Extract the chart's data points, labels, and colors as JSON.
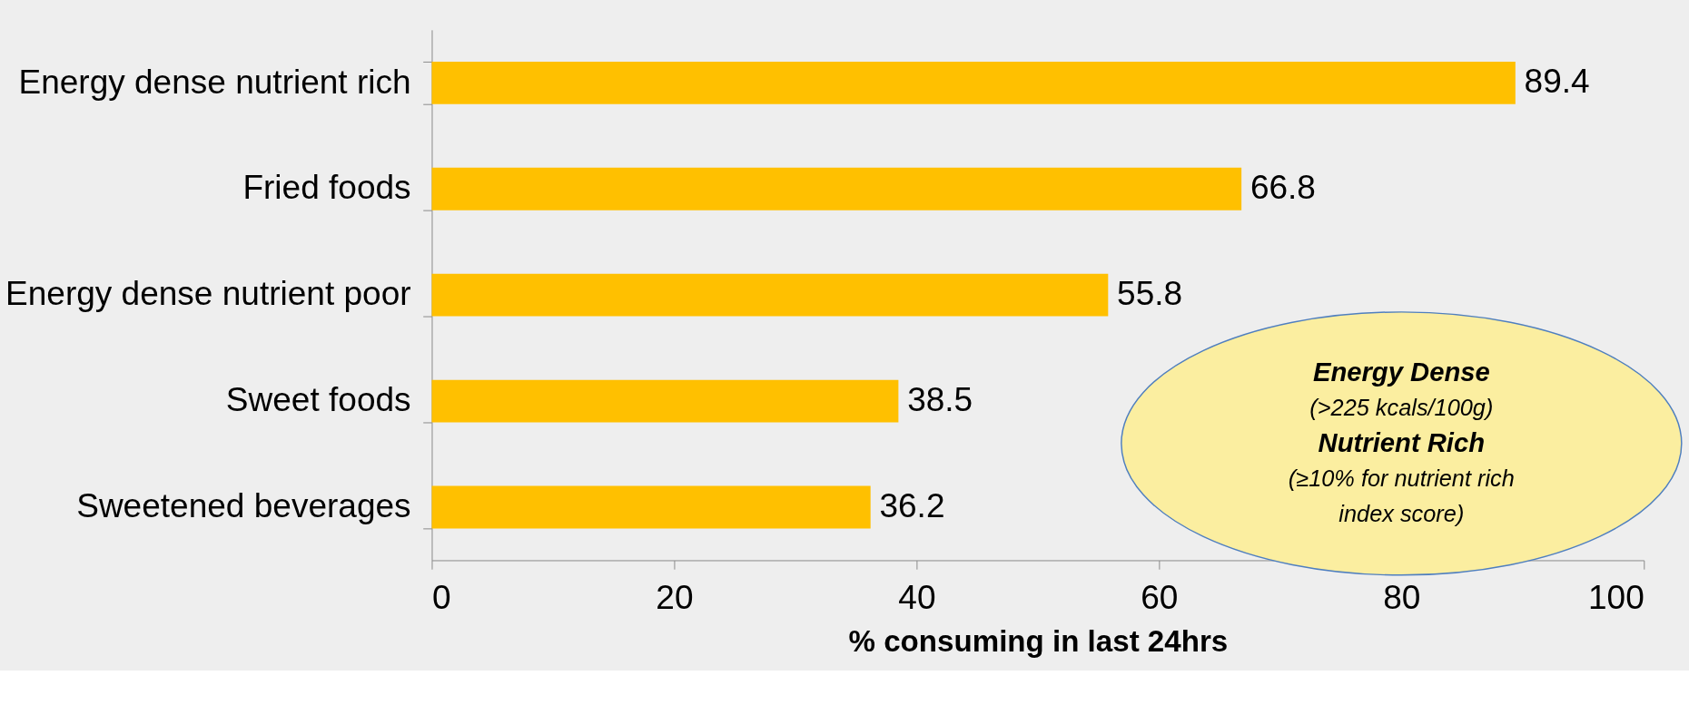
{
  "chart_data": {
    "type": "bar",
    "orientation": "horizontal",
    "categories": [
      "Energy dense nutrient rich",
      "Fried foods",
      "Energy dense nutrient poor",
      "Sweet foods",
      "Sweetened beverages"
    ],
    "values": [
      89.4,
      66.8,
      55.8,
      38.5,
      36.2
    ],
    "color": "#ffc000",
    "xlim": [
      0,
      100
    ],
    "xticks": [
      0,
      20,
      40,
      60,
      80,
      100
    ],
    "grid": false,
    "data_labels": true,
    "xlabel": "% consuming in last 24hrs",
    "annotations": [
      "Energy Dense",
      "(>225 kcals/100g)",
      "Nutrient Rich",
      "(≥10% for nutrient rich",
      "index score)"
    ]
  }
}
